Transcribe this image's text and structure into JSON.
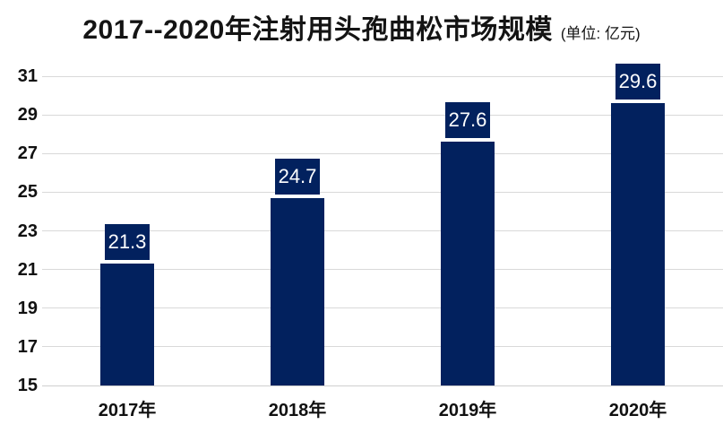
{
  "title": {
    "main": "2017--2020年注射用头孢曲松市场规模",
    "unit": "(单位: 亿元)"
  },
  "chart_data": {
    "type": "bar",
    "title": "2017--2020年注射用头孢曲松市场规模",
    "unit_label": "(单位: 亿元)",
    "categories": [
      "2017年",
      "2018年",
      "2019年",
      "2020年"
    ],
    "values": [
      21.3,
      24.7,
      27.6,
      29.6
    ],
    "value_labels": [
      "21.3",
      "24.7",
      "27.6",
      "29.6"
    ],
    "series": [
      {
        "name": "市场规模",
        "values": [
          21.3,
          24.7,
          27.6,
          29.6
        ]
      }
    ],
    "yticks": [
      15,
      17,
      19,
      21,
      23,
      25,
      27,
      29,
      31
    ],
    "ylim": [
      15,
      31
    ],
    "xlabel": "",
    "ylabel": "",
    "grid": true,
    "legend_position": "none",
    "colors": {
      "bar": "#02215E",
      "value_label_bg": "#02215E",
      "value_label_text": "#FFFFFF",
      "gridline": "#D9D9D9",
      "axis_line": "#CFCFCF",
      "axis_text": "#111111",
      "title_text": "#141414",
      "background": "#FFFFFF"
    }
  }
}
